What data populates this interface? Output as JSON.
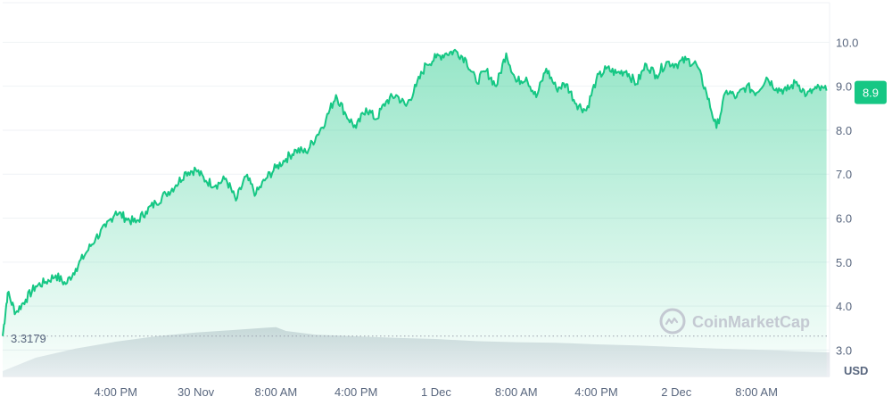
{
  "chart_data": {
    "type": "line",
    "title": "",
    "xlabel": "",
    "ylabel": "",
    "unit": "USD",
    "ylim": [
      2.4,
      10.9
    ],
    "y_ticks": [
      "10.0",
      "9.0",
      "8.0",
      "7.0",
      "6.0",
      "5.0",
      "4.0",
      "3.0"
    ],
    "x_ticks": [
      "4:00 PM",
      "30 Nov",
      "8:00 AM",
      "4:00 PM",
      "1 Dec",
      "8:00 AM",
      "4:00 PM",
      "2 Dec",
      "8:00 AM"
    ],
    "x_range_hours": [
      -11.3,
      71.3
    ],
    "open_price": 3.3179,
    "open_price_label": "3.3179",
    "current_price_label": "8.9",
    "series": [
      {
        "x_hours": [
          -11.3,
          -10.8,
          -10.0,
          -9.0,
          -8.0,
          -7.0,
          -6.0,
          -5.0,
          -4.0,
          -3.0,
          -2.0,
          -1.0,
          0.0,
          1.0,
          2.0,
          3.0,
          4.0,
          5.0,
          6.0,
          7.0,
          8.0,
          9.0,
          10.0,
          11.0,
          12.0,
          13.0,
          14.0,
          15.0,
          16.0,
          17.0,
          18.0,
          19.0,
          20.0,
          21.0,
          22.0,
          23.0,
          24.0,
          25.0,
          26.0,
          27.0,
          28.0,
          29.0,
          30.0,
          31.0,
          32.0,
          33.0,
          34.0,
          35.0,
          36.0,
          37.0,
          38.0,
          39.0,
          40.0,
          41.0,
          42.0,
          43.0,
          44.0,
          45.0,
          46.0,
          47.0,
          48.0,
          49.0,
          50.0,
          51.0,
          52.0,
          53.0,
          54.0,
          55.0,
          56.0,
          57.0,
          58.0,
          59.0,
          60.0,
          61.0,
          62.0,
          63.0,
          64.0,
          65.0,
          66.0,
          67.0,
          68.0,
          69.0,
          70.0,
          71.0
        ],
        "values": [
          3.32,
          4.3,
          3.85,
          4.15,
          4.45,
          4.55,
          4.7,
          4.5,
          4.85,
          5.2,
          5.55,
          5.8,
          6.15,
          6.0,
          5.9,
          6.15,
          6.35,
          6.55,
          6.75,
          7.05,
          7.1,
          6.85,
          6.75,
          6.9,
          6.4,
          6.95,
          6.55,
          6.9,
          7.15,
          7.35,
          7.55,
          7.5,
          7.85,
          8.25,
          8.8,
          8.35,
          8.05,
          8.5,
          8.25,
          8.65,
          8.8,
          8.55,
          9.0,
          9.5,
          9.65,
          9.75,
          9.8,
          9.6,
          9.1,
          9.35,
          9.0,
          9.75,
          9.1,
          9.2,
          8.75,
          9.4,
          8.95,
          9.05,
          8.6,
          8.45,
          9.15,
          9.4,
          9.3,
          9.35,
          9.05,
          9.5,
          9.25,
          9.55,
          9.5,
          9.6,
          9.5,
          8.85,
          8.05,
          8.9,
          8.75,
          9.0,
          8.85,
          9.2,
          8.95,
          8.9,
          9.1,
          8.8,
          8.95,
          8.9
        ]
      }
    ],
    "volume": {
      "x_hours": [
        -11.3,
        -8.0,
        -4.0,
        0.0,
        4.0,
        8.0,
        12.0,
        15.0,
        16.0,
        17.0,
        20.0,
        24.0,
        28.0,
        32.0,
        36.0,
        40.0,
        44.0,
        48.0,
        52.0,
        56.0,
        60.0,
        64.0,
        68.0,
        71.3
      ],
      "values": [
        0.1,
        0.35,
        0.52,
        0.65,
        0.75,
        0.82,
        0.87,
        0.91,
        0.92,
        0.85,
        0.78,
        0.75,
        0.72,
        0.7,
        0.66,
        0.64,
        0.63,
        0.6,
        0.58,
        0.55,
        0.52,
        0.5,
        0.47,
        0.45
      ]
    },
    "grid": true,
    "legend": "none",
    "colors": {
      "line": "#16c784",
      "fill": "#16c784",
      "volume": "#d5d9df",
      "grid": "#eff2f5",
      "badge": "#16c784",
      "open_line": "#9aa1ad"
    }
  },
  "watermark": {
    "text": "CoinMarketCap"
  }
}
